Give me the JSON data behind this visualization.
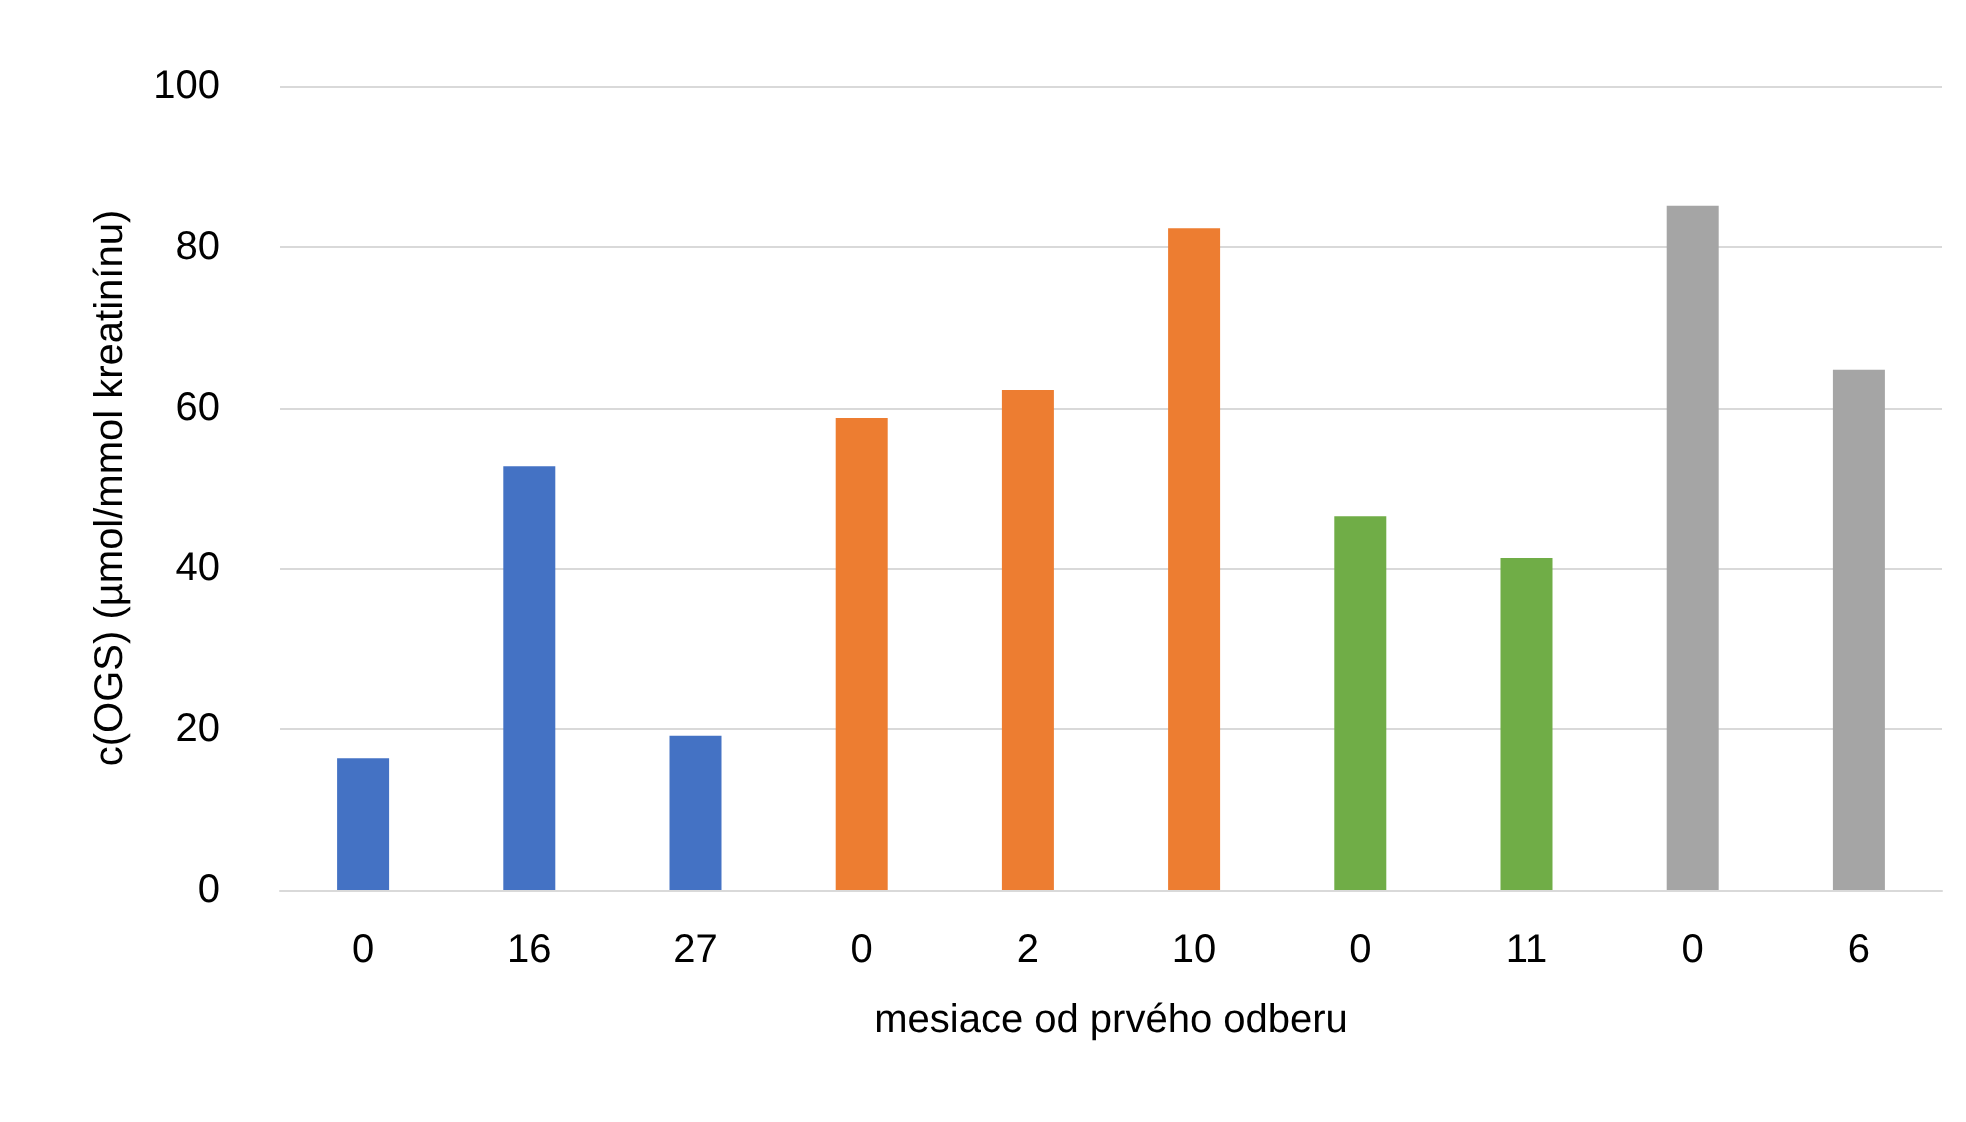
{
  "chart_data": {
    "type": "bar",
    "xlabel": "mesiace od prvého odberu",
    "ylabel": "c(OGS) (µmol/mmol kreatinínu)",
    "categories": [
      "0",
      "16",
      "27",
      "0",
      "2",
      "10",
      "0",
      "11",
      "0",
      "6"
    ],
    "values": [
      16.4,
      52.7,
      19.2,
      58.7,
      62.2,
      82.3,
      46.5,
      41.3,
      85.1,
      64.7
    ],
    "colors": [
      "#4472c4",
      "#4472c4",
      "#4472c4",
      "#ed7d31",
      "#ed7d31",
      "#ed7d31",
      "#70ad47",
      "#70ad47",
      "#a5a5a5",
      "#a5a5a5"
    ],
    "ylim": [
      0,
      100
    ],
    "yticks": [
      0,
      20,
      40,
      60,
      80,
      100
    ],
    "grid": "y"
  }
}
